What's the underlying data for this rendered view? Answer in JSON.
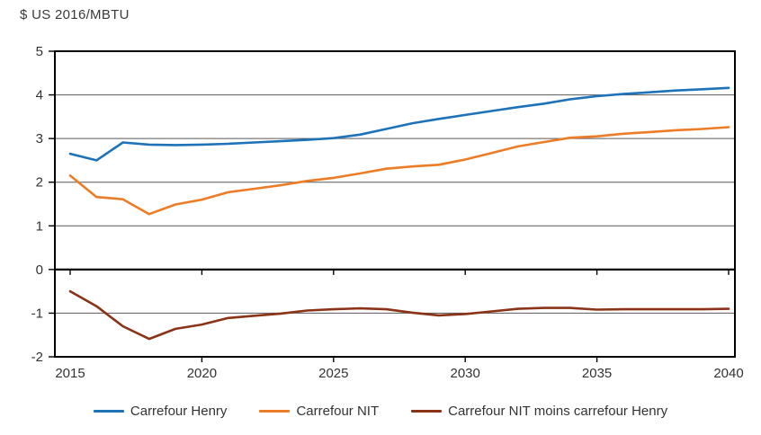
{
  "chart_data": {
    "type": "line",
    "title": "$ US 2016/MBTU",
    "xlabel": "",
    "ylabel": "$ US 2016/MBTU",
    "ylim": [
      -2,
      5
    ],
    "grid": "horizontal",
    "legend_position": "bottom",
    "x": [
      2015,
      2016,
      2017,
      2018,
      2019,
      2020,
      2021,
      2022,
      2023,
      2024,
      2025,
      2026,
      2027,
      2028,
      2029,
      2030,
      2031,
      2032,
      2033,
      2034,
      2035,
      2036,
      2037,
      2038,
      2039,
      2040
    ],
    "x_ticks": [
      2015,
      2020,
      2025,
      2030,
      2035,
      2040
    ],
    "y_ticks": [
      5,
      4,
      3,
      2,
      1,
      0,
      -1,
      -2
    ],
    "series": [
      {
        "id": "carrefour-henry",
        "name": "Carrefour Henry",
        "color": "#1E73B8",
        "values": [
          2.65,
          2.5,
          2.91,
          2.86,
          2.85,
          2.86,
          2.88,
          2.91,
          2.94,
          2.97,
          3.01,
          3.09,
          3.22,
          3.35,
          3.45,
          3.54,
          3.63,
          3.72,
          3.8,
          3.9,
          3.97,
          4.02,
          4.06,
          4.1,
          4.13,
          4.16
        ]
      },
      {
        "id": "carrefour-nit",
        "name": "Carrefour NIT",
        "color": "#EC7C26",
        "values": [
          2.15,
          1.66,
          1.61,
          1.27,
          1.49,
          1.6,
          1.77,
          1.85,
          1.93,
          2.03,
          2.1,
          2.2,
          2.31,
          2.36,
          2.4,
          2.52,
          2.67,
          2.82,
          2.92,
          3.02,
          3.05,
          3.11,
          3.15,
          3.19,
          3.22,
          3.26
        ]
      },
      {
        "id": "nit-moins-henry",
        "name": "Carrefour NIT moins carrefour Henry",
        "color": "#8A3316",
        "values": [
          -0.5,
          -0.84,
          -1.3,
          -1.59,
          -1.36,
          -1.26,
          -1.11,
          -1.06,
          -1.01,
          -0.94,
          -0.91,
          -0.89,
          -0.91,
          -0.99,
          -1.05,
          -1.02,
          -0.96,
          -0.9,
          -0.88,
          -0.88,
          -0.92,
          -0.91,
          -0.91,
          -0.91,
          -0.91,
          -0.9
        ]
      }
    ],
    "style": {
      "gridline_color": "#595959",
      "axis_color": "#000000",
      "text_color": "#333333"
    }
  }
}
